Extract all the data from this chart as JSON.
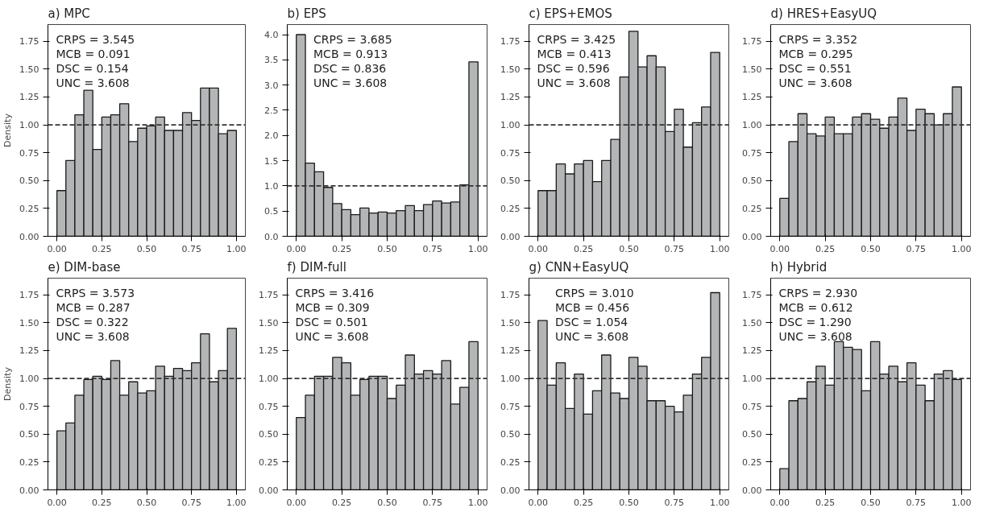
{
  "chart_data": [
    {
      "type": "histogram",
      "title": "a) MPC",
      "ylabel": "Density",
      "color": "#b3b5b7",
      "bins": [
        0,
        0.05,
        0.1,
        0.15,
        0.2,
        0.25,
        0.3,
        0.35,
        0.4,
        0.45,
        0.5,
        0.55,
        0.6,
        0.65,
        0.7,
        0.75,
        0.8,
        0.85,
        0.9,
        0.95,
        1
      ],
      "values": [
        0.41,
        0.68,
        1.09,
        1.31,
        0.78,
        1.07,
        1.09,
        1.19,
        0.85,
        0.97,
        0.99,
        1.07,
        0.95,
        0.95,
        1.11,
        1.04,
        1.33,
        1.33,
        0.92,
        0.95
      ],
      "annotations": [
        "CRPS = 3.545",
        "MCB = 0.091",
        "DSC = 0.154",
        "UNC = 3.608"
      ],
      "ref_lines": [
        {
          "axis": "y",
          "value": 1,
          "color": "#333333",
          "line_style": "dashed"
        }
      ],
      "xlim": [
        -0.05,
        1.05
      ],
      "xticks": [
        {
          "value": 0,
          "label": "0.00"
        },
        {
          "value": 0.25,
          "label": "0.25"
        },
        {
          "value": 0.5,
          "label": "0.50"
        },
        {
          "value": 0.75,
          "label": "0.75"
        },
        {
          "value": 1,
          "label": "1.00"
        }
      ],
      "ylim": [
        0,
        1.9
      ],
      "yticks": [
        {
          "value": 0,
          "label": "0.00"
        },
        {
          "value": 0.25,
          "label": "0.25"
        },
        {
          "value": 0.5,
          "label": "0.50"
        },
        {
          "value": 0.75,
          "label": "0.75"
        },
        {
          "value": 1,
          "label": "1.00"
        },
        {
          "value": 1.25,
          "label": "1.25"
        },
        {
          "value": 1.5,
          "label": "1.50"
        },
        {
          "value": 1.75,
          "label": "1.75"
        }
      ]
    },
    {
      "type": "histogram",
      "title": "b) EPS",
      "color": "#b3b5b7",
      "bins": [
        0,
        0.05,
        0.1,
        0.15,
        0.2,
        0.25,
        0.3,
        0.35,
        0.4,
        0.45,
        0.5,
        0.55,
        0.6,
        0.65,
        0.7,
        0.75,
        0.8,
        0.85,
        0.9,
        0.95,
        1
      ],
      "values": [
        4.0,
        1.45,
        1.28,
        0.97,
        0.65,
        0.53,
        0.43,
        0.56,
        0.46,
        0.48,
        0.46,
        0.51,
        0.61,
        0.51,
        0.63,
        0.7,
        0.66,
        0.68,
        1.02,
        3.46
      ],
      "annotations": [
        "CRPS = 3.685",
        "MCB = 0.913",
        "DSC = 0.836",
        "UNC = 3.608"
      ],
      "ref_lines": [
        {
          "axis": "y",
          "value": 1,
          "color": "#333333",
          "line_style": "dashed"
        }
      ],
      "xlim": [
        -0.05,
        1.05
      ],
      "xticks": [
        {
          "value": 0,
          "label": "0.00"
        },
        {
          "value": 0.25,
          "label": "0.25"
        },
        {
          "value": 0.5,
          "label": "0.50"
        },
        {
          "value": 0.75,
          "label": "0.75"
        },
        {
          "value": 1,
          "label": "1.00"
        }
      ],
      "ylim": [
        0,
        4.2
      ],
      "yticks": [
        {
          "value": 0,
          "label": "0.0"
        },
        {
          "value": 0.5,
          "label": "0.5"
        },
        {
          "value": 1,
          "label": "1.0"
        },
        {
          "value": 1.5,
          "label": "1.5"
        },
        {
          "value": 2,
          "label": "2.0"
        },
        {
          "value": 2.5,
          "label": "2.5"
        },
        {
          "value": 3,
          "label": "3.0"
        },
        {
          "value": 3.5,
          "label": "3.5"
        },
        {
          "value": 4,
          "label": "4.0"
        }
      ]
    },
    {
      "type": "histogram",
      "title": "c) EPS+EMOS",
      "color": "#b3b5b7",
      "bins": [
        0,
        0.05,
        0.1,
        0.15,
        0.2,
        0.25,
        0.3,
        0.35,
        0.4,
        0.45,
        0.5,
        0.55,
        0.6,
        0.65,
        0.7,
        0.75,
        0.8,
        0.85,
        0.9,
        0.95,
        1
      ],
      "values": [
        0.41,
        0.41,
        0.65,
        0.56,
        0.65,
        0.68,
        0.49,
        0.68,
        0.87,
        1.43,
        1.84,
        1.52,
        1.62,
        1.52,
        0.94,
        1.14,
        0.8,
        1.02,
        1.16,
        1.65
      ],
      "annotations": [
        "CRPS = 3.425",
        "MCB = 0.413",
        "DSC = 0.596",
        "UNC = 3.608"
      ],
      "ref_lines": [
        {
          "axis": "y",
          "value": 1,
          "color": "#333333",
          "line_style": "dashed"
        }
      ],
      "xlim": [
        -0.05,
        1.05
      ],
      "xticks": [
        {
          "value": 0,
          "label": "0.00"
        },
        {
          "value": 0.25,
          "label": "0.25"
        },
        {
          "value": 0.5,
          "label": "0.50"
        },
        {
          "value": 0.75,
          "label": "0.75"
        },
        {
          "value": 1,
          "label": "1.00"
        }
      ],
      "ylim": [
        0,
        1.9
      ],
      "yticks": [
        {
          "value": 0,
          "label": "0.00"
        },
        {
          "value": 0.25,
          "label": "0.25"
        },
        {
          "value": 0.5,
          "label": "0.50"
        },
        {
          "value": 0.75,
          "label": "0.75"
        },
        {
          "value": 1,
          "label": "1.00"
        },
        {
          "value": 1.25,
          "label": "1.25"
        },
        {
          "value": 1.5,
          "label": "1.50"
        },
        {
          "value": 1.75,
          "label": "1.75"
        }
      ]
    },
    {
      "type": "histogram",
      "title": "d) HRES+EasyUQ",
      "color": "#b3b5b7",
      "bins": [
        0,
        0.05,
        0.1,
        0.15,
        0.2,
        0.25,
        0.3,
        0.35,
        0.4,
        0.45,
        0.5,
        0.55,
        0.6,
        0.65,
        0.7,
        0.75,
        0.8,
        0.85,
        0.9,
        0.95,
        1
      ],
      "values": [
        0.34,
        0.85,
        1.1,
        0.92,
        0.9,
        1.07,
        0.92,
        0.92,
        1.07,
        1.1,
        1.05,
        0.97,
        1.07,
        1.24,
        0.95,
        1.14,
        1.1,
        1.0,
        1.1,
        1.34
      ],
      "annotations": [
        "CRPS = 3.352",
        "MCB = 0.295",
        "DSC = 0.551",
        "UNC = 3.608"
      ],
      "ref_lines": [
        {
          "axis": "y",
          "value": 1,
          "color": "#333333",
          "line_style": "dashed"
        }
      ],
      "xlim": [
        -0.05,
        1.05
      ],
      "xticks": [
        {
          "value": 0,
          "label": "0.00"
        },
        {
          "value": 0.25,
          "label": "0.25"
        },
        {
          "value": 0.5,
          "label": "0.50"
        },
        {
          "value": 0.75,
          "label": "0.75"
        },
        {
          "value": 1,
          "label": "1.00"
        }
      ],
      "ylim": [
        0,
        1.9
      ],
      "yticks": [
        {
          "value": 0,
          "label": "0.00"
        },
        {
          "value": 0.25,
          "label": "0.25"
        },
        {
          "value": 0.5,
          "label": "0.50"
        },
        {
          "value": 0.75,
          "label": "0.75"
        },
        {
          "value": 1,
          "label": "1.00"
        },
        {
          "value": 1.25,
          "label": "1.25"
        },
        {
          "value": 1.5,
          "label": "1.50"
        },
        {
          "value": 1.75,
          "label": "1.75"
        }
      ]
    },
    {
      "type": "histogram",
      "title": "e) DIM-base",
      "ylabel": "Density",
      "color": "#b3b5b7",
      "bins": [
        0,
        0.05,
        0.1,
        0.15,
        0.2,
        0.25,
        0.3,
        0.35,
        0.4,
        0.45,
        0.5,
        0.55,
        0.6,
        0.65,
        0.7,
        0.75,
        0.8,
        0.85,
        0.9,
        0.95,
        1
      ],
      "values": [
        0.53,
        0.6,
        0.85,
        0.99,
        1.02,
        0.99,
        1.16,
        0.85,
        0.97,
        0.87,
        0.89,
        1.11,
        1.02,
        1.09,
        1.07,
        1.14,
        1.4,
        0.97,
        1.07,
        1.45
      ],
      "annotations": [
        "CRPS = 3.573",
        "MCB = 0.287",
        "DSC = 0.322",
        "UNC = 3.608"
      ],
      "ref_lines": [
        {
          "axis": "y",
          "value": 1,
          "color": "#333333",
          "line_style": "dashed"
        }
      ],
      "xlim": [
        -0.05,
        1.05
      ],
      "xticks": [
        {
          "value": 0,
          "label": "0.00"
        },
        {
          "value": 0.25,
          "label": "0.25"
        },
        {
          "value": 0.5,
          "label": "0.50"
        },
        {
          "value": 0.75,
          "label": "0.75"
        },
        {
          "value": 1,
          "label": "1.00"
        }
      ],
      "ylim": [
        0,
        1.9
      ],
      "yticks": [
        {
          "value": 0,
          "label": "0.00"
        },
        {
          "value": 0.25,
          "label": "0.25"
        },
        {
          "value": 0.5,
          "label": "0.50"
        },
        {
          "value": 0.75,
          "label": "0.75"
        },
        {
          "value": 1,
          "label": "1.00"
        },
        {
          "value": 1.25,
          "label": "1.25"
        },
        {
          "value": 1.5,
          "label": "1.50"
        },
        {
          "value": 1.75,
          "label": "1.75"
        }
      ]
    },
    {
      "type": "histogram",
      "title": "f) DIM-full",
      "color": "#b3b5b7",
      "bins": [
        0,
        0.05,
        0.1,
        0.15,
        0.2,
        0.25,
        0.3,
        0.35,
        0.4,
        0.45,
        0.5,
        0.55,
        0.6,
        0.65,
        0.7,
        0.75,
        0.8,
        0.85,
        0.9,
        0.95,
        1
      ],
      "values": [
        0.65,
        0.85,
        1.02,
        1.02,
        1.19,
        1.14,
        0.85,
        0.99,
        1.02,
        1.02,
        0.82,
        0.94,
        1.21,
        1.04,
        1.07,
        1.04,
        1.16,
        0.77,
        0.92,
        1.33
      ],
      "annotations": [
        "CRPS = 3.416",
        "MCB = 0.309",
        "DSC = 0.501",
        "UNC = 3.608"
      ],
      "ref_lines": [
        {
          "axis": "y",
          "value": 1,
          "color": "#333333",
          "line_style": "dashed"
        }
      ],
      "xlim": [
        -0.05,
        1.05
      ],
      "xticks": [
        {
          "value": 0,
          "label": "0.00"
        },
        {
          "value": 0.25,
          "label": "0.25"
        },
        {
          "value": 0.5,
          "label": "0.50"
        },
        {
          "value": 0.75,
          "label": "0.75"
        },
        {
          "value": 1,
          "label": "1.00"
        }
      ],
      "ylim": [
        0,
        1.9
      ],
      "yticks": [
        {
          "value": 0,
          "label": "0.00"
        },
        {
          "value": 0.25,
          "label": "0.25"
        },
        {
          "value": 0.5,
          "label": "0.50"
        },
        {
          "value": 0.75,
          "label": "0.75"
        },
        {
          "value": 1,
          "label": "1.00"
        },
        {
          "value": 1.25,
          "label": "1.25"
        },
        {
          "value": 1.5,
          "label": "1.50"
        },
        {
          "value": 1.75,
          "label": "1.75"
        }
      ]
    },
    {
      "type": "histogram",
      "title": "g) CNN+EasyUQ",
      "color": "#b3b5b7",
      "bins": [
        0,
        0.05,
        0.1,
        0.15,
        0.2,
        0.25,
        0.3,
        0.35,
        0.4,
        0.45,
        0.5,
        0.55,
        0.6,
        0.65,
        0.7,
        0.75,
        0.8,
        0.85,
        0.9,
        0.95,
        1
      ],
      "values": [
        1.52,
        0.94,
        1.14,
        0.73,
        1.04,
        0.68,
        0.89,
        1.21,
        0.87,
        0.82,
        1.19,
        1.11,
        0.8,
        0.8,
        0.75,
        0.7,
        0.85,
        1.04,
        1.19,
        1.77
      ],
      "annotations": [
        "CRPS = 3.010",
        "MCB = 0.456",
        "DSC = 1.054",
        "UNC = 3.608"
      ],
      "ref_lines": [
        {
          "axis": "y",
          "value": 1,
          "color": "#333333",
          "line_style": "dashed"
        }
      ],
      "xlim": [
        -0.05,
        1.05
      ],
      "xticks": [
        {
          "value": 0,
          "label": "0.00"
        },
        {
          "value": 0.25,
          "label": "0.25"
        },
        {
          "value": 0.5,
          "label": "0.50"
        },
        {
          "value": 0.75,
          "label": "0.75"
        },
        {
          "value": 1,
          "label": "1.00"
        }
      ],
      "ylim": [
        0,
        1.9
      ],
      "yticks": [
        {
          "value": 0,
          "label": "0.00"
        },
        {
          "value": 0.25,
          "label": "0.25"
        },
        {
          "value": 0.5,
          "label": "0.50"
        },
        {
          "value": 0.75,
          "label": "0.75"
        },
        {
          "value": 1,
          "label": "1.00"
        },
        {
          "value": 1.25,
          "label": "1.25"
        },
        {
          "value": 1.5,
          "label": "1.50"
        },
        {
          "value": 1.75,
          "label": "1.75"
        }
      ]
    },
    {
      "type": "histogram",
      "title": "h) Hybrid",
      "color": "#b3b5b7",
      "bins": [
        0,
        0.05,
        0.1,
        0.15,
        0.2,
        0.25,
        0.3,
        0.35,
        0.4,
        0.45,
        0.5,
        0.55,
        0.6,
        0.65,
        0.7,
        0.75,
        0.8,
        0.85,
        0.9,
        0.95,
        1
      ],
      "values": [
        0.19,
        0.8,
        0.82,
        0.97,
        1.11,
        0.94,
        1.33,
        1.28,
        1.26,
        0.89,
        1.33,
        1.04,
        1.11,
        0.97,
        1.14,
        0.94,
        0.8,
        1.04,
        1.07,
        0.99
      ],
      "annotations": [
        "CRPS = 2.930",
        "MCB = 0.612",
        "DSC = 1.290",
        "UNC = 3.608"
      ],
      "ref_lines": [
        {
          "axis": "y",
          "value": 1,
          "color": "#333333",
          "line_style": "dashed"
        }
      ],
      "xlim": [
        -0.05,
        1.05
      ],
      "xticks": [
        {
          "value": 0,
          "label": "0.00"
        },
        {
          "value": 0.25,
          "label": "0.25"
        },
        {
          "value": 0.5,
          "label": "0.50"
        },
        {
          "value": 0.75,
          "label": "0.75"
        },
        {
          "value": 1,
          "label": "1.00"
        }
      ],
      "ylim": [
        0,
        1.9
      ],
      "yticks": [
        {
          "value": 0,
          "label": "0.00"
        },
        {
          "value": 0.25,
          "label": "0.25"
        },
        {
          "value": 0.5,
          "label": "0.50"
        },
        {
          "value": 0.75,
          "label": "0.75"
        },
        {
          "value": 1,
          "label": "1.00"
        },
        {
          "value": 1.25,
          "label": "1.25"
        },
        {
          "value": 1.5,
          "label": "1.50"
        },
        {
          "value": 1.75,
          "label": "1.75"
        }
      ]
    }
  ]
}
